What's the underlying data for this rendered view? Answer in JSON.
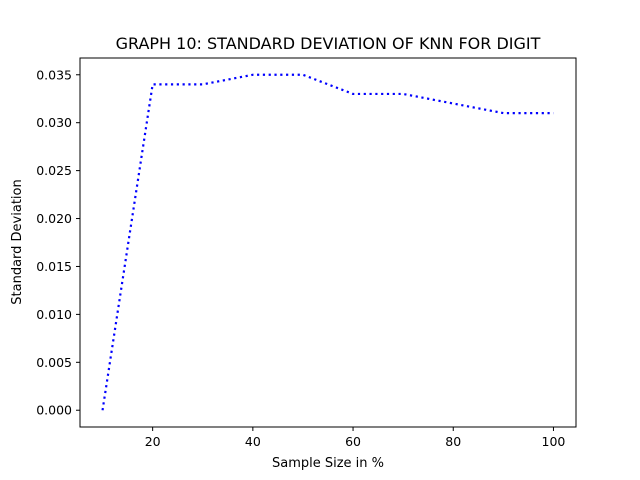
{
  "chart_data": {
    "type": "line",
    "title": "GRAPH 10: STANDARD DEVIATION OF KNN FOR DIGIT",
    "xlabel": "Sample Size in %",
    "ylabel": "Standard Deviation",
    "xlim": [
      5.5,
      104.5
    ],
    "ylim": [
      -0.00175,
      0.03675
    ],
    "x_ticks": [
      20,
      40,
      60,
      80,
      100
    ],
    "x_tick_labels": [
      "20",
      "40",
      "60",
      "80",
      "100"
    ],
    "y_ticks": [
      0.0,
      0.005,
      0.01,
      0.015,
      0.02,
      0.025,
      0.03,
      0.035
    ],
    "y_tick_labels": [
      "0.000",
      "0.005",
      "0.010",
      "0.015",
      "0.020",
      "0.025",
      "0.030",
      "0.035"
    ],
    "grid": false,
    "series": [
      {
        "color": "#0000ff",
        "line_style": "dotted",
        "x": [
          10,
          20,
          30,
          40,
          50,
          60,
          70,
          80,
          90,
          100
        ],
        "y": [
          0.0,
          0.034,
          0.034,
          0.035,
          0.035,
          0.033,
          0.033,
          0.032,
          0.031,
          0.031
        ]
      }
    ]
  }
}
